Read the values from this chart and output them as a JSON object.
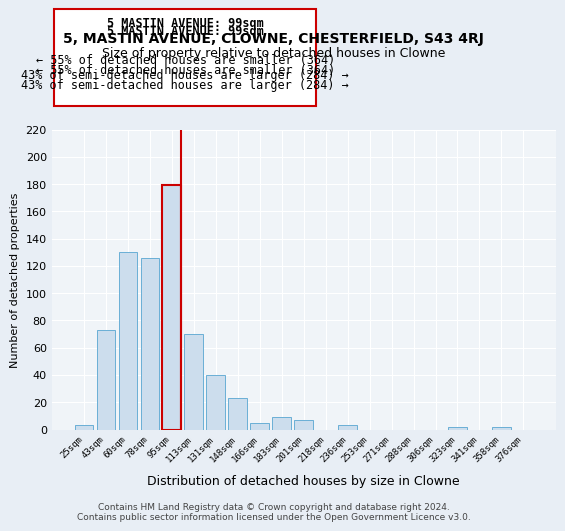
{
  "title": "5, MASTIN AVENUE, CLOWNE, CHESTERFIELD, S43 4RJ",
  "subtitle": "Size of property relative to detached houses in Clowne",
  "xlabel": "Distribution of detached houses by size in Clowne",
  "ylabel": "Number of detached properties",
  "bar_labels": [
    "25sqm",
    "43sqm",
    "60sqm",
    "78sqm",
    "95sqm",
    "113sqm",
    "131sqm",
    "148sqm",
    "166sqm",
    "183sqm",
    "201sqm",
    "218sqm",
    "236sqm",
    "253sqm",
    "271sqm",
    "288sqm",
    "306sqm",
    "323sqm",
    "341sqm",
    "358sqm",
    "376sqm"
  ],
  "bar_values": [
    3,
    73,
    130,
    126,
    179,
    70,
    40,
    23,
    5,
    9,
    7,
    0,
    3,
    0,
    0,
    0,
    0,
    2,
    0,
    2,
    0
  ],
  "bar_color": "#ccdded",
  "bar_edge_color": "#6aafd6",
  "highlight_index": 4,
  "vline_color": "#cc0000",
  "ylim": [
    0,
    220
  ],
  "yticks": [
    0,
    20,
    40,
    60,
    80,
    100,
    120,
    140,
    160,
    180,
    200,
    220
  ],
  "annotation_title": "5 MASTIN AVENUE: 99sqm",
  "annotation_line1": "← 55% of detached houses are smaller (364)",
  "annotation_line2": "43% of semi-detached houses are larger (284) →",
  "annotation_box_color": "#ffffff",
  "annotation_box_edge": "#cc0000",
  "footer1": "Contains HM Land Registry data © Crown copyright and database right 2024.",
  "footer2": "Contains public sector information licensed under the Open Government Licence v3.0.",
  "bg_color": "#e8eef5",
  "plot_bg_color": "#f0f4f8"
}
